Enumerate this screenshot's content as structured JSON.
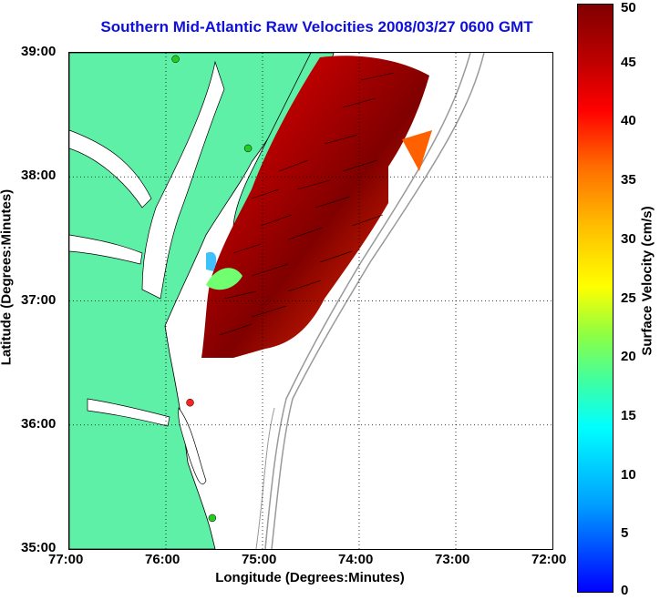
{
  "title": "Southern Mid-Atlantic Raw Velocities 2008/03/27 0600 GMT",
  "chart_data": {
    "type": "map",
    "x_axis": {
      "label": "Longitude (Degrees:Minutes)",
      "ticks": [
        "77:00",
        "76:00",
        "75:00",
        "74:00",
        "73:00",
        "72:00"
      ],
      "range": [
        -77,
        -72
      ]
    },
    "y_axis": {
      "label": "Latitude (Degrees:Minutes)",
      "ticks": [
        "39:00",
        "38:00",
        "37:00",
        "36:00",
        "35:00"
      ],
      "range": [
        35,
        39
      ]
    },
    "colorbar": {
      "label": "Surface Velocity (cm/s)",
      "ticks": [
        "50",
        "45",
        "40",
        "35",
        "30",
        "25",
        "20",
        "15",
        "10",
        "5",
        "0"
      ],
      "range": [
        0,
        50
      ]
    },
    "grid": true,
    "stations": [
      {
        "lon": -75.9,
        "lat": 38.95,
        "color": "#22cc22"
      },
      {
        "lon": -75.15,
        "lat": 38.23,
        "color": "#22cc22"
      },
      {
        "lon": -75.75,
        "lat": 36.18,
        "color": "#ff2020"
      },
      {
        "lon": -75.52,
        "lat": 35.25,
        "color": "#22cc22"
      }
    ],
    "colors": {
      "land": "#5ff0a8",
      "grid": "#000000",
      "bathymetry": "#999999"
    }
  }
}
